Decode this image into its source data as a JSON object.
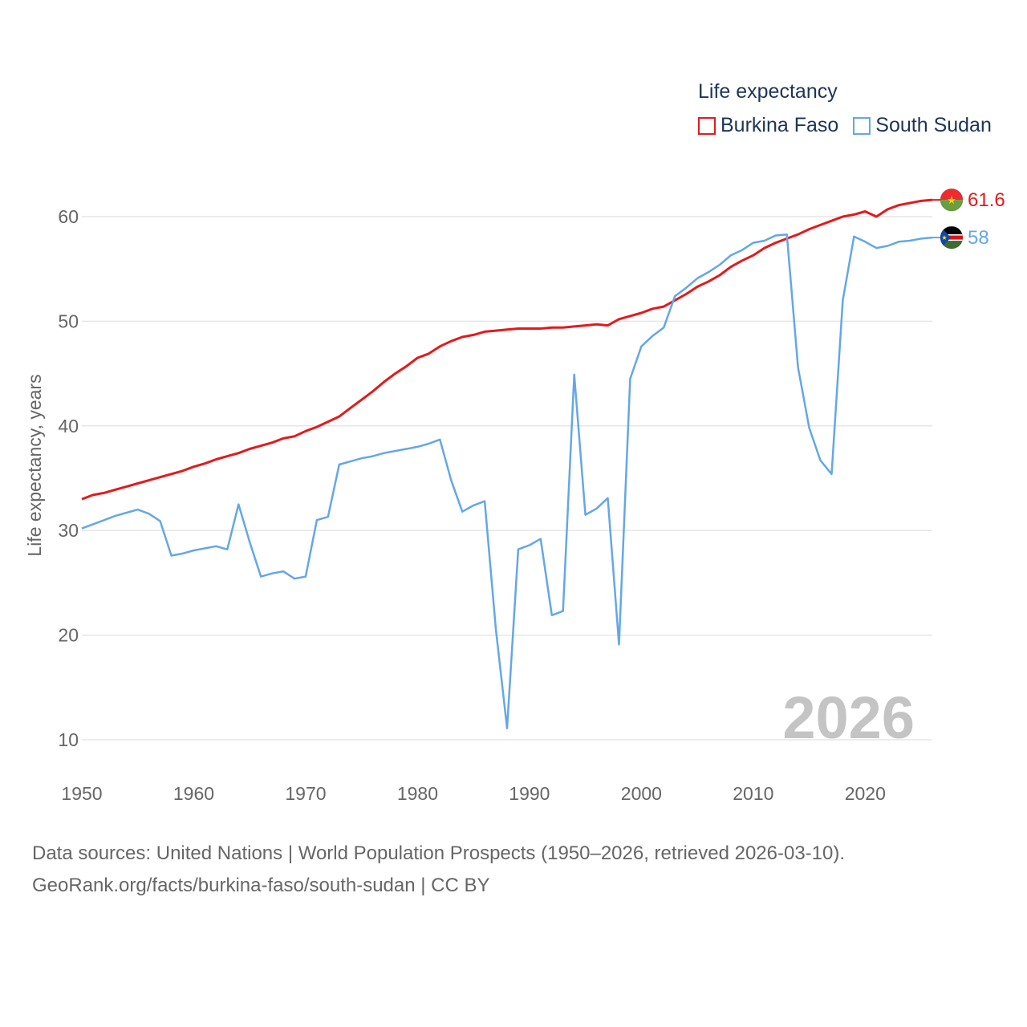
{
  "chart_data": {
    "type": "line",
    "title": "",
    "legend_title": "Life expectancy",
    "ylabel": "Life expectancy, years",
    "xlabel": "",
    "xlim": [
      1950,
      2026
    ],
    "ylim": [
      4,
      65
    ],
    "yticks": [
      10,
      20,
      30,
      40,
      50,
      60
    ],
    "xticks": [
      1950,
      1960,
      1970,
      1980,
      1990,
      2000,
      2010,
      2020
    ],
    "current_year_label": "2026",
    "x": [
      1950,
      1951,
      1952,
      1953,
      1954,
      1955,
      1956,
      1957,
      1958,
      1959,
      1960,
      1961,
      1962,
      1963,
      1964,
      1965,
      1966,
      1967,
      1968,
      1969,
      1970,
      1971,
      1972,
      1973,
      1974,
      1975,
      1976,
      1977,
      1978,
      1979,
      1980,
      1981,
      1982,
      1983,
      1984,
      1985,
      1986,
      1987,
      1988,
      1989,
      1990,
      1991,
      1992,
      1993,
      1994,
      1995,
      1996,
      1997,
      1998,
      1999,
      2000,
      2001,
      2002,
      2003,
      2004,
      2005,
      2006,
      2007,
      2008,
      2009,
      2010,
      2011,
      2012,
      2013,
      2014,
      2015,
      2016,
      2017,
      2018,
      2019,
      2020,
      2021,
      2022,
      2023,
      2024,
      2025,
      2026
    ],
    "series": [
      {
        "name": "Burkina Faso",
        "color": "#e31a1c",
        "end_label": "61.6",
        "values": [
          33.0,
          33.4,
          33.6,
          33.9,
          34.2,
          34.5,
          34.8,
          35.1,
          35.4,
          35.7,
          36.1,
          36.4,
          36.8,
          37.1,
          37.4,
          37.8,
          38.1,
          38.4,
          38.8,
          39.0,
          39.5,
          39.9,
          40.4,
          40.9,
          41.7,
          42.5,
          43.3,
          44.2,
          45.0,
          45.7,
          46.5,
          46.9,
          47.6,
          48.1,
          48.5,
          48.7,
          49.0,
          49.1,
          49.2,
          49.3,
          49.3,
          49.3,
          49.4,
          49.4,
          49.5,
          49.6,
          49.7,
          49.6,
          50.2,
          50.5,
          50.8,
          51.2,
          51.4,
          52.0,
          52.6,
          53.3,
          53.8,
          54.4,
          55.2,
          55.8,
          56.3,
          57.0,
          57.5,
          57.9,
          58.3,
          58.8,
          59.2,
          59.6,
          60.0,
          60.2,
          60.5,
          60.0,
          60.7,
          61.1,
          61.3,
          61.5,
          61.6
        ]
      },
      {
        "name": "South Sudan",
        "color": "#64a7e8",
        "end_label": "58",
        "values": [
          30.2,
          30.6,
          31.0,
          31.4,
          31.7,
          32.0,
          31.6,
          30.9,
          27.6,
          27.8,
          28.1,
          28.3,
          28.5,
          28.2,
          32.5,
          28.9,
          25.6,
          25.9,
          26.1,
          25.4,
          25.6,
          31.0,
          31.3,
          36.3,
          36.6,
          36.9,
          37.1,
          37.4,
          37.6,
          37.8,
          38.0,
          38.3,
          38.7,
          34.8,
          31.8,
          32.4,
          32.8,
          20.5,
          11.1,
          28.2,
          28.6,
          29.2,
          21.9,
          22.3,
          44.9,
          31.5,
          32.1,
          33.1,
          19.1,
          44.5,
          47.6,
          48.6,
          49.4,
          52.4,
          53.2,
          54.1,
          54.7,
          55.4,
          56.3,
          56.8,
          57.5,
          57.7,
          58.2,
          58.3,
          45.6,
          39.8,
          36.7,
          35.4,
          52.0,
          58.1,
          57.6,
          57.0,
          57.2,
          57.6,
          57.7,
          57.9,
          58.0
        ]
      }
    ]
  },
  "footer": {
    "line1": "Data sources: United Nations | World Population Prospects (1950–2026, retrieved 2026-03-10).",
    "line2": "GeoRank.org/facts/burkina-faso/south-sudan | CC BY"
  }
}
